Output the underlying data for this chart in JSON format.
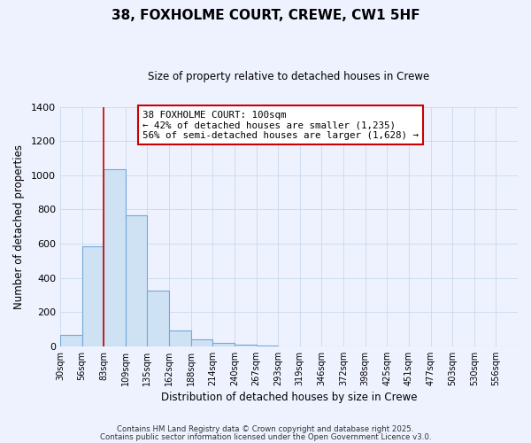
{
  "title": "38, FOXHOLME COURT, CREWE, CW1 5HF",
  "subtitle": "Size of property relative to detached houses in Crewe",
  "xlabel": "Distribution of detached houses by size in Crewe",
  "ylabel": "Number of detached properties",
  "bar_values": [
    65,
    585,
    1035,
    765,
    325,
    90,
    38,
    18,
    8,
    2,
    0,
    0,
    0,
    0,
    0,
    0,
    0,
    0,
    0,
    0,
    0
  ],
  "bar_labels": [
    "30sqm",
    "56sqm",
    "83sqm",
    "109sqm",
    "135sqm",
    "162sqm",
    "188sqm",
    "214sqm",
    "240sqm",
    "267sqm",
    "293sqm",
    "319sqm",
    "346sqm",
    "372sqm",
    "398sqm",
    "425sqm",
    "451sqm",
    "477sqm",
    "503sqm",
    "530sqm",
    "556sqm"
  ],
  "bar_color": "#cfe2f3",
  "bar_edge_color": "#6fa8dc",
  "ylim": [
    0,
    1400
  ],
  "yticks": [
    0,
    200,
    400,
    600,
    800,
    1000,
    1200,
    1400
  ],
  "vline_x": 2.0,
  "vline_color": "#cc0000",
  "annotation_title": "38 FOXHOLME COURT: 100sqm",
  "annotation_line1": "← 42% of detached houses are smaller (1,235)",
  "annotation_line2": "56% of semi-detached houses are larger (1,628) →",
  "bg_color": "#eef2ff",
  "grid_color": "#c8d8ec",
  "footer1": "Contains HM Land Registry data © Crown copyright and database right 2025.",
  "footer2": "Contains public sector information licensed under the Open Government Licence v3.0."
}
